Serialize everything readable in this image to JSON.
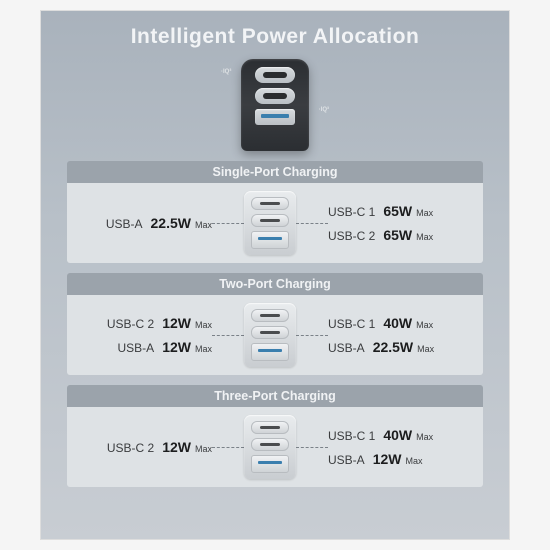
{
  "title": "Intelligent Power Allocation",
  "colors": {
    "bg_top": "#a9b2bc",
    "bg_bottom": "#c8cdd3",
    "header_bar": "#9ba3ab",
    "header_text": "#f0f2f4",
    "panel_bg": "#dee2e5",
    "text": "#3a3c3e",
    "watt_text": "#1c1d1e",
    "dash": "#7a8188",
    "usb_blue": "#3a7fae",
    "charger_body": "#2b2e32"
  },
  "max_suffix": "Max",
  "hero": {
    "iq_label": "·IQ³",
    "ports": [
      "usb-c",
      "usb-c",
      "usb-a"
    ]
  },
  "sections": [
    {
      "title": "Single-Port Charging",
      "device_ports": [
        "usb-c",
        "usb-c",
        "usb-a"
      ],
      "left": [
        {
          "label": "USB-A",
          "watts": "22.5W"
        }
      ],
      "right": [
        {
          "label": "USB-C 1",
          "watts": "65W"
        },
        {
          "label": "USB-C 2",
          "watts": "65W"
        }
      ]
    },
    {
      "title": "Two-Port Charging",
      "device_ports": [
        "usb-c",
        "usb-c",
        "usb-a"
      ],
      "left": [
        {
          "label": "USB-C 2",
          "watts": "12W"
        },
        {
          "label": "USB-A",
          "watts": "12W"
        }
      ],
      "right": [
        {
          "label": "USB-C 1",
          "watts": "40W"
        },
        {
          "label": "USB-A",
          "watts": "22.5W"
        }
      ]
    },
    {
      "title": "Three-Port Charging",
      "device_ports": [
        "usb-c",
        "usb-c",
        "usb-a"
      ],
      "left": [
        {
          "label": "USB-C 2",
          "watts": "12W"
        }
      ],
      "right": [
        {
          "label": "USB-C 1",
          "watts": "40W"
        },
        {
          "label": "USB-A",
          "watts": "12W"
        }
      ]
    }
  ]
}
